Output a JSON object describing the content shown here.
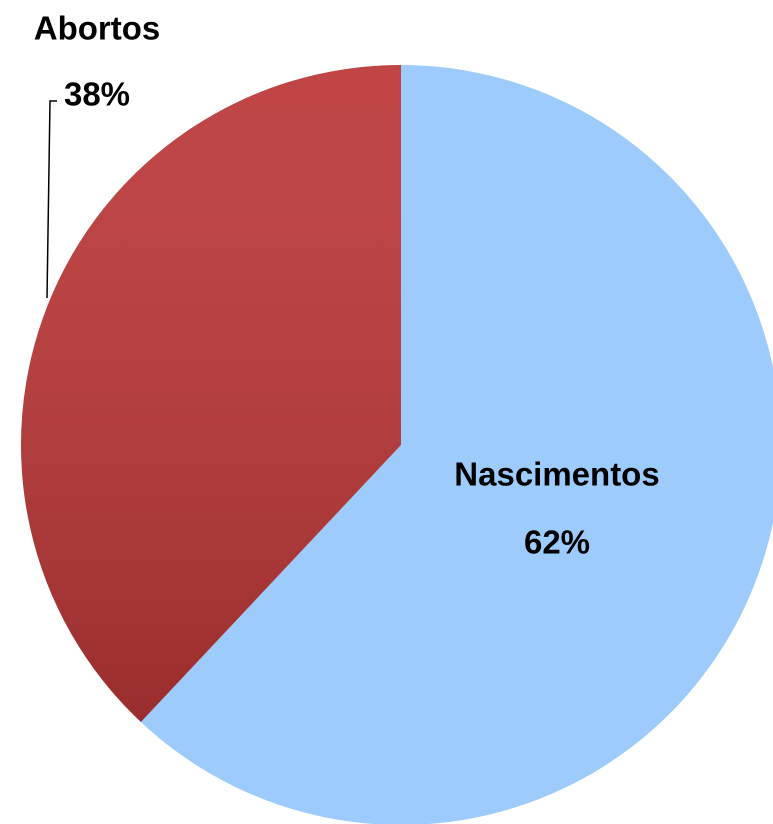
{
  "chart_data": {
    "type": "pie",
    "categories": [
      "Nascimentos",
      "Abortos"
    ],
    "values": [
      62,
      38
    ],
    "value_labels": [
      "62%",
      "38%"
    ],
    "colors": [
      "#9ccbfc",
      "#bb3636"
    ]
  }
}
